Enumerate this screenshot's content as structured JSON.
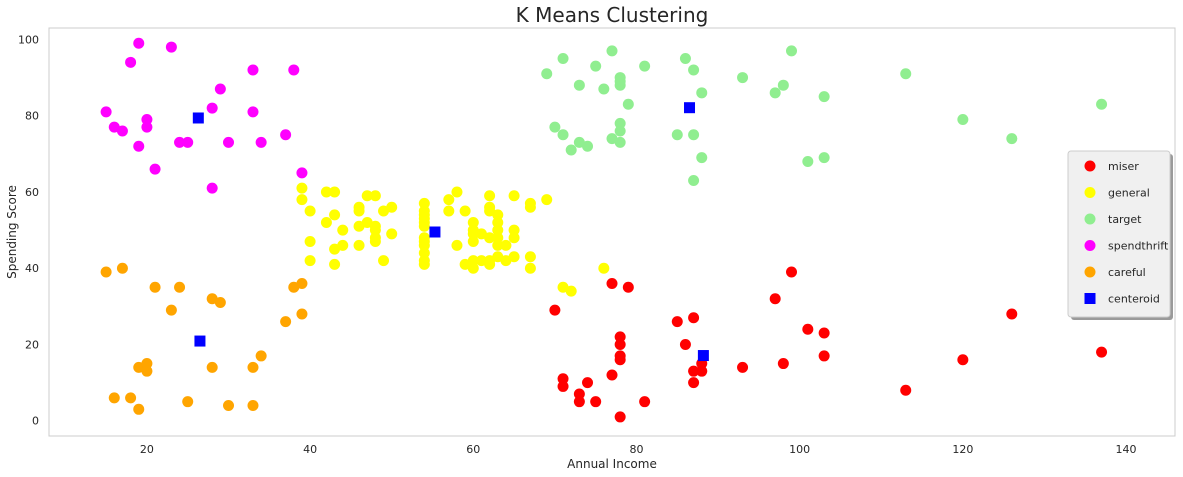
{
  "chart_data": {
    "type": "scatter",
    "title": "K Means Clustering",
    "xlabel": "Annual Income",
    "ylabel": "Spending Score",
    "xlim": [
      8,
      146
    ],
    "ylim": [
      -4,
      103
    ],
    "xticks": [
      "20",
      "40",
      "60",
      "80",
      "100",
      "120",
      "140"
    ],
    "yticks": [
      "0",
      "20",
      "40",
      "60",
      "80",
      "100"
    ],
    "grid": false,
    "legend_position": "right",
    "series": [
      {
        "name": "miser",
        "color": "#ff0000",
        "marker": "circle",
        "points": [
          [
            70,
            29
          ],
          [
            71,
            11
          ],
          [
            71,
            9
          ],
          [
            73,
            7
          ],
          [
            73,
            5
          ],
          [
            74,
            10
          ],
          [
            75,
            5
          ],
          [
            77,
            12
          ],
          [
            77,
            36
          ],
          [
            78,
            22
          ],
          [
            78,
            20
          ],
          [
            78,
            17
          ],
          [
            78,
            16
          ],
          [
            78,
            1
          ],
          [
            79,
            35
          ],
          [
            81,
            5
          ],
          [
            85,
            26
          ],
          [
            86,
            20
          ],
          [
            87,
            27
          ],
          [
            87,
            13
          ],
          [
            87,
            10
          ],
          [
            88,
            13
          ],
          [
            88,
            15
          ],
          [
            93,
            14
          ],
          [
            97,
            32
          ],
          [
            98,
            15
          ],
          [
            99,
            39
          ],
          [
            101,
            24
          ],
          [
            103,
            23
          ],
          [
            103,
            17
          ],
          [
            113,
            8
          ],
          [
            120,
            16
          ],
          [
            126,
            28
          ],
          [
            137,
            18
          ]
        ]
      },
      {
        "name": "general",
        "color": "#ffff00",
        "marker": "circle",
        "points": [
          [
            39,
            61
          ],
          [
            39,
            58
          ],
          [
            40,
            55
          ],
          [
            40,
            47
          ],
          [
            40,
            42
          ],
          [
            42,
            60
          ],
          [
            42,
            52
          ],
          [
            43,
            60
          ],
          [
            43,
            54
          ],
          [
            43,
            45
          ],
          [
            43,
            41
          ],
          [
            44,
            50
          ],
          [
            44,
            46
          ],
          [
            46,
            51
          ],
          [
            46,
            46
          ],
          [
            46,
            56
          ],
          [
            46,
            55
          ],
          [
            47,
            52
          ],
          [
            47,
            59
          ],
          [
            48,
            51
          ],
          [
            48,
            59
          ],
          [
            48,
            50
          ],
          [
            48,
            48
          ],
          [
            48,
            47
          ],
          [
            49,
            55
          ],
          [
            49,
            42
          ],
          [
            50,
            49
          ],
          [
            50,
            56
          ],
          [
            54,
            47
          ],
          [
            54,
            54
          ],
          [
            54,
            53
          ],
          [
            54,
            48
          ],
          [
            54,
            52
          ],
          [
            54,
            42
          ],
          [
            54,
            51
          ],
          [
            54,
            55
          ],
          [
            54,
            41
          ],
          [
            54,
            44
          ],
          [
            54,
            57
          ],
          [
            54,
            46
          ],
          [
            57,
            58
          ],
          [
            57,
            55
          ],
          [
            58,
            60
          ],
          [
            58,
            46
          ],
          [
            59,
            55
          ],
          [
            59,
            41
          ],
          [
            60,
            49
          ],
          [
            60,
            40
          ],
          [
            60,
            42
          ],
          [
            60,
            52
          ],
          [
            60,
            47
          ],
          [
            60,
            50
          ],
          [
            61,
            42
          ],
          [
            61,
            49
          ],
          [
            62,
            41
          ],
          [
            62,
            48
          ],
          [
            62,
            59
          ],
          [
            62,
            55
          ],
          [
            62,
            56
          ],
          [
            62,
            42
          ],
          [
            63,
            50
          ],
          [
            63,
            46
          ],
          [
            63,
            43
          ],
          [
            63,
            48
          ],
          [
            63,
            52
          ],
          [
            63,
            54
          ],
          [
            64,
            42
          ],
          [
            64,
            46
          ],
          [
            65,
            48
          ],
          [
            65,
            50
          ],
          [
            65,
            43
          ],
          [
            65,
            59
          ],
          [
            67,
            43
          ],
          [
            67,
            57
          ],
          [
            67,
            56
          ],
          [
            67,
            40
          ],
          [
            69,
            58
          ],
          [
            71,
            35
          ],
          [
            72,
            34
          ],
          [
            76,
            40
          ]
        ]
      },
      {
        "name": "target",
        "color": "#90ee90",
        "marker": "circle",
        "points": [
          [
            69,
            91
          ],
          [
            70,
            77
          ],
          [
            71,
            95
          ],
          [
            71,
            75
          ],
          [
            72,
            71
          ],
          [
            73,
            88
          ],
          [
            73,
            73
          ],
          [
            74,
            72
          ],
          [
            75,
            93
          ],
          [
            76,
            87
          ],
          [
            77,
            97
          ],
          [
            77,
            74
          ],
          [
            78,
            90
          ],
          [
            78,
            88
          ],
          [
            78,
            76
          ],
          [
            78,
            89
          ],
          [
            78,
            78
          ],
          [
            78,
            73
          ],
          [
            79,
            83
          ],
          [
            81,
            93
          ],
          [
            85,
            75
          ],
          [
            86,
            95
          ],
          [
            87,
            63
          ],
          [
            87,
            75
          ],
          [
            87,
            92
          ],
          [
            88,
            86
          ],
          [
            88,
            69
          ],
          [
            93,
            90
          ],
          [
            97,
            86
          ],
          [
            98,
            88
          ],
          [
            99,
            97
          ],
          [
            101,
            68
          ],
          [
            103,
            85
          ],
          [
            103,
            69
          ],
          [
            113,
            91
          ],
          [
            120,
            79
          ],
          [
            126,
            74
          ],
          [
            137,
            83
          ]
        ]
      },
      {
        "name": "spendthrift",
        "color": "#ff00ff",
        "marker": "circle",
        "points": [
          [
            15,
            81
          ],
          [
            16,
            77
          ],
          [
            17,
            76
          ],
          [
            18,
            94
          ],
          [
            19,
            72
          ],
          [
            19,
            99
          ],
          [
            20,
            77
          ],
          [
            20,
            79
          ],
          [
            21,
            66
          ],
          [
            23,
            98
          ],
          [
            24,
            73
          ],
          [
            25,
            73
          ],
          [
            28,
            82
          ],
          [
            28,
            61
          ],
          [
            29,
            87
          ],
          [
            30,
            73
          ],
          [
            33,
            92
          ],
          [
            33,
            81
          ],
          [
            34,
            73
          ],
          [
            37,
            75
          ],
          [
            38,
            92
          ],
          [
            39,
            65
          ]
        ]
      },
      {
        "name": "careful",
        "color": "#ffa500",
        "marker": "circle",
        "points": [
          [
            15,
            39
          ],
          [
            16,
            6
          ],
          [
            17,
            40
          ],
          [
            18,
            6
          ],
          [
            19,
            3
          ],
          [
            19,
            14
          ],
          [
            20,
            15
          ],
          [
            20,
            13
          ],
          [
            21,
            35
          ],
          [
            23,
            29
          ],
          [
            24,
            35
          ],
          [
            25,
            5
          ],
          [
            28,
            32
          ],
          [
            28,
            14
          ],
          [
            29,
            31
          ],
          [
            30,
            4
          ],
          [
            33,
            4
          ],
          [
            33,
            14
          ],
          [
            34,
            17
          ],
          [
            37,
            26
          ],
          [
            38,
            35
          ],
          [
            39,
            36
          ],
          [
            39,
            28
          ]
        ]
      },
      {
        "name": "centeroid",
        "color": "#0000ff",
        "marker": "square",
        "points": [
          [
            26.3,
            79.4
          ],
          [
            26.5,
            20.9
          ],
          [
            55.3,
            49.5
          ],
          [
            86.5,
            82.1
          ],
          [
            88.2,
            17.1
          ]
        ]
      }
    ]
  }
}
